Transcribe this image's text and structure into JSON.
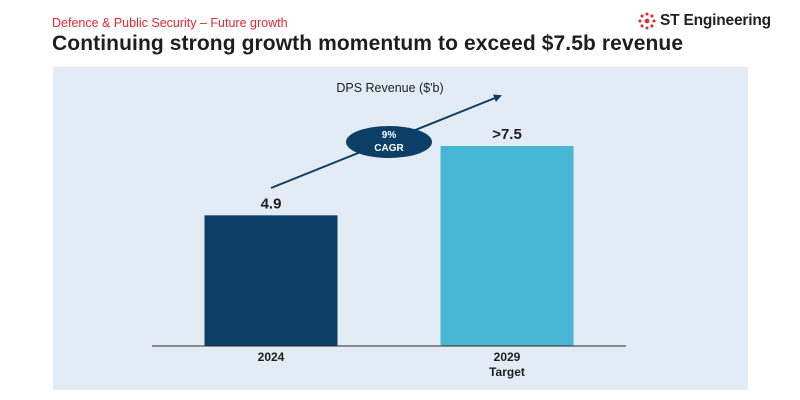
{
  "header": {
    "subtitle": "Defence & Public Security – Future growth",
    "title": "Continuing strong growth momentum to exceed $7.5b revenue",
    "logo_text": "ST Engineering"
  },
  "colors": {
    "accent_red": "#e8262d",
    "panel_bg": "#e3ecf5",
    "navy": "#0c3f66",
    "light_blue": "#48b7d4"
  },
  "chart_data": {
    "type": "bar",
    "title": "DPS Revenue ($'b)",
    "categories": [
      "2024",
      "2029"
    ],
    "category_sublabels": [
      "",
      "Target"
    ],
    "values": [
      4.9,
      7.5
    ],
    "data_labels": [
      "4.9",
      ">7.5"
    ],
    "bar_colors": [
      "#0c3f66",
      "#48b7d4"
    ],
    "ylim": [
      0,
      7.5
    ],
    "grid": false,
    "xlabel": "",
    "ylabel": "",
    "annotation": {
      "type": "growth-arrow",
      "label_line1": "9%",
      "label_line2": "CAGR"
    }
  }
}
